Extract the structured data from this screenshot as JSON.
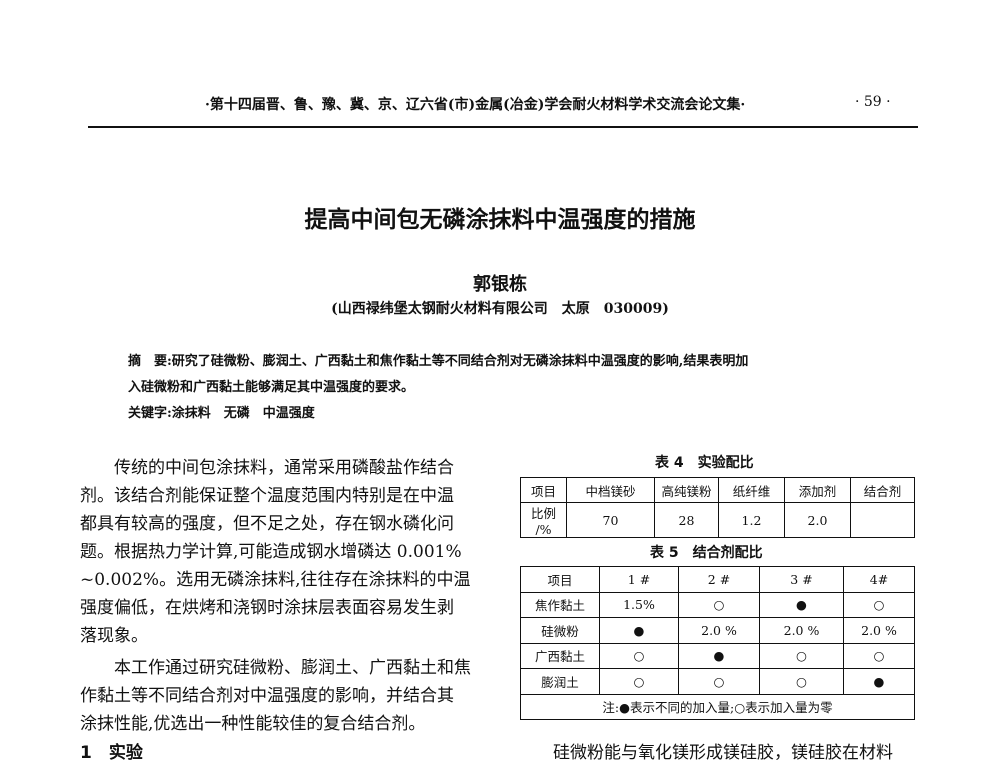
{
  "header": {
    "running_title": "·第十四届晋、鲁、豫、冀、京、辽六省(市)金属(冶金)学会耐火材料学术交流会论文集·",
    "page_number": "· 59 ·"
  },
  "paper": {
    "title": "提高中间包无磷涂抹料中温强度的措施",
    "author": "郭银栋",
    "affiliation": "(山西禄纬堡太钢耐火材料有限公司　太原　030009)"
  },
  "abstract": {
    "lines": [
      "摘　要:研究了硅微粉、膨润土、广西黏土和焦作黏土等不同结合剂对无磷涂抹料中温强度的影响,结果表明加",
      "入硅微粉和广西黏土能够满足其中温强度的要求。"
    ],
    "keywords": "关键字:涂抹料　无磷　中温强度"
  },
  "body_left": [
    "　　传统的中间包涂抹料，通常采用磷酸盐作结合",
    "剂。该结合剂能保证整个温度范围内特别是在中温",
    "都具有较高的强度，但不足之处，存在钢水磷化问",
    "题。根据热力学计算,可能造成钢水增磷达 0.001%",
    "~0.002%。选用无磷涂抹料,往往存在涂抹料的中温",
    "强度偏低，在烘烤和浇钢时涂抹层表面容易发生剥",
    "落现象。",
    "　　本工作通过研究硅微粉、膨润土、广西黏土和焦",
    "作黏土等不同结合剂对中温强度的影响，并结合其",
    "涂抹性能,优选出一种性能较佳的复合结合剂。"
  ],
  "section_heading": "1　实验",
  "body_right_last": "硅微粉能与氧化镁形成镁硅胶，镁硅胶在材料",
  "table4": {
    "caption": "表 4　实验配比",
    "header": [
      "项目",
      "中档镁砂",
      "高纯镁粉",
      "纸纤维",
      "添加剂",
      "结合剂"
    ],
    "row": [
      "比例 /%",
      "70",
      "28",
      "1.2",
      "2.0",
      ""
    ]
  },
  "table5": {
    "caption": "表 5　结合剂配比",
    "header": [
      "项目",
      "1 #",
      "2 #",
      "3 #",
      "4#"
    ],
    "rows": [
      [
        "焦作黏土",
        "1.5%",
        "○",
        "●",
        "○"
      ],
      [
        "硅微粉",
        "●",
        "2.0 %",
        "2.0 %",
        "2.0 %"
      ],
      [
        "广西黏土",
        "○",
        "●",
        "○",
        "○"
      ],
      [
        "膨润土",
        "○",
        "○",
        "○",
        "●"
      ]
    ],
    "note": "注:●表示不同的加入量;○表示加入量为零"
  }
}
